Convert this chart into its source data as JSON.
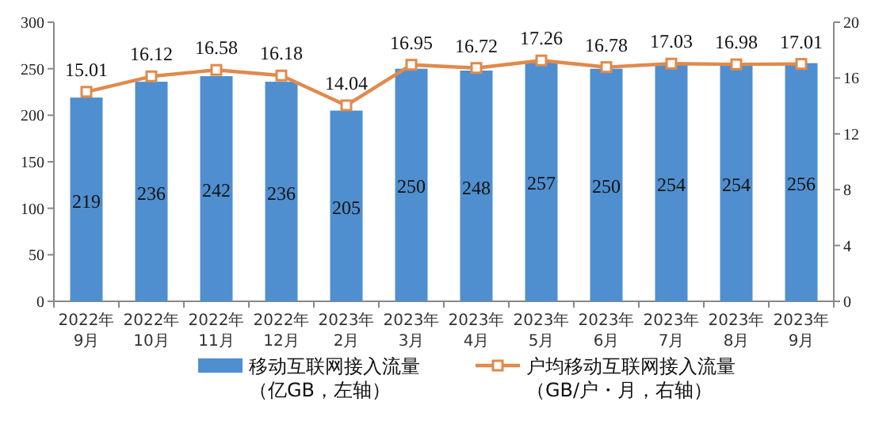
{
  "chart_data": {
    "type": "bar",
    "categories": [
      "2022年\n9月",
      "2022年\n10月",
      "2022年\n11月",
      "2022年\n12月",
      "2023年\n2月",
      "2023年\n3月",
      "2023年\n4月",
      "2023年\n5月",
      "2023年\n6月",
      "2023年\n7月",
      "2023年\n8月",
      "2023年\n9月"
    ],
    "series": [
      {
        "name": "移动互联网接入流量（亿GB，左轴）",
        "color": "#4f8fcf",
        "values": [
          219,
          236,
          242,
          236,
          205,
          250,
          248,
          257,
          250,
          254,
          254,
          256
        ]
      },
      {
        "name": "户均移动互联网接入流量（GB/户・月，右轴）",
        "type": "line",
        "axis": "y2",
        "color": "#e08a4c",
        "marker": "square",
        "values": [
          15.01,
          16.12,
          16.58,
          16.18,
          14.04,
          16.95,
          16.72,
          17.26,
          16.78,
          17.03,
          16.98,
          17.01
        ]
      }
    ],
    "ylim": [
      0,
      300
    ],
    "yticks": [
      0,
      50,
      100,
      150,
      200,
      250,
      300
    ],
    "y2lim": [
      0,
      20
    ],
    "y2ticks": [
      0,
      4,
      8,
      12,
      16,
      20
    ],
    "data_labels": true,
    "grid": false,
    "legend": "bottom"
  }
}
